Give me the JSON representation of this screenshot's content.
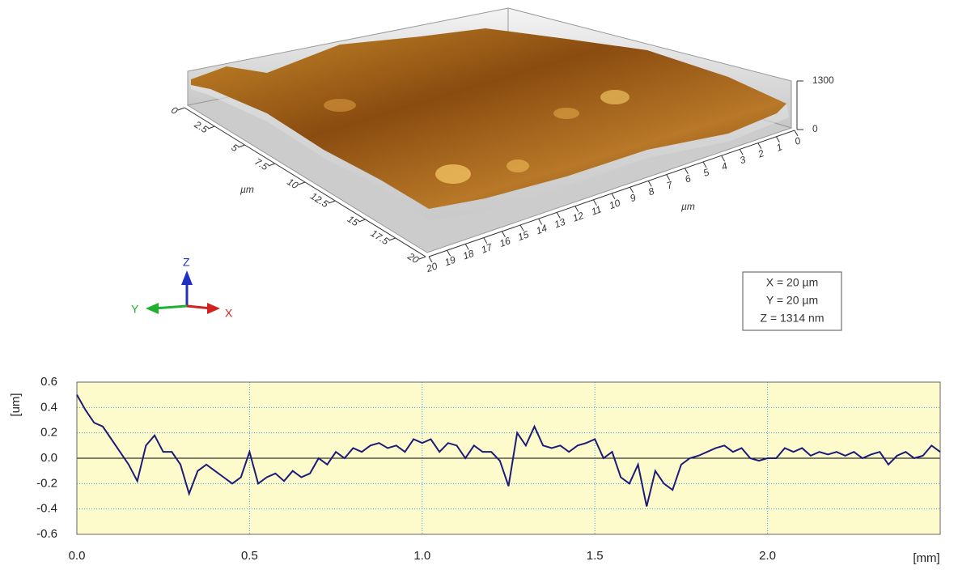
{
  "chart_data": [
    {
      "type": "surface",
      "xlabel": "µm",
      "ylabel": "µm",
      "xlim": [
        0,
        20
      ],
      "xticks": [
        0,
        2.5,
        5,
        7.5,
        10,
        12.5,
        15,
        17.5,
        20
      ],
      "ylim": [
        0,
        20
      ],
      "yticks": [
        20,
        19,
        18,
        17,
        16,
        15,
        14,
        13,
        12,
        11,
        10,
        9,
        8,
        7,
        6,
        5,
        4,
        3,
        2,
        1,
        0
      ],
      "zlim": [
        0,
        1300
      ],
      "zticks": [
        0,
        1300
      ],
      "info": [
        "X = 20 µm",
        "Y = 20 µm",
        "Z = 1314 nm"
      ]
    },
    {
      "type": "line",
      "ylabel": "[um]",
      "xlabel": "[mm]",
      "color": "#1c1c78",
      "grid": true,
      "xlim": [
        0,
        2.5
      ],
      "xticks": [
        {
          "value": 0,
          "label": "0.0"
        },
        0.5,
        {
          "value": 1,
          "label": "1.0"
        },
        1.5,
        {
          "value": 2,
          "label": "2.0"
        }
      ],
      "ylim": [
        -0.6,
        0.6
      ],
      "yticks": [
        -0.6,
        -0.4,
        -0.2,
        {
          "value": 0,
          "label": "0.0"
        },
        0.2,
        0.4,
        0.6
      ],
      "x": [
        0,
        0.025,
        0.05,
        0.075,
        0.1,
        0.125,
        0.15,
        0.175,
        0.2,
        0.225,
        0.25,
        0.275,
        0.3,
        0.325,
        0.35,
        0.375,
        0.4,
        0.425,
        0.45,
        0.475,
        0.5,
        0.525,
        0.55,
        0.575,
        0.6,
        0.625,
        0.65,
        0.675,
        0.7,
        0.725,
        0.75,
        0.775,
        0.8,
        0.825,
        0.85,
        0.875,
        0.9,
        0.925,
        0.95,
        0.975,
        1,
        1.025,
        1.05,
        1.075,
        1.1,
        1.125,
        1.15,
        1.175,
        1.2,
        1.225,
        1.25,
        1.275,
        1.3,
        1.325,
        1.35,
        1.375,
        1.4,
        1.425,
        1.45,
        1.475,
        1.5,
        1.525,
        1.55,
        1.575,
        1.6,
        1.625,
        1.65,
        1.675,
        1.7,
        1.725,
        1.75,
        1.775,
        1.8,
        1.825,
        1.85,
        1.875,
        1.9,
        1.925,
        1.95,
        1.975,
        2,
        2.025,
        2.05,
        2.075,
        2.1,
        2.125,
        2.15,
        2.175,
        2.2,
        2.225,
        2.25,
        2.275,
        2.3,
        2.325,
        2.35,
        2.375,
        2.4,
        2.425,
        2.45,
        2.475,
        2.5
      ],
      "values": [
        0.5,
        0.38,
        0.28,
        0.25,
        0.15,
        0.05,
        -0.05,
        -0.18,
        0.1,
        0.18,
        0.05,
        0.05,
        -0.05,
        -0.28,
        -0.1,
        -0.05,
        -0.1,
        -0.15,
        -0.2,
        -0.15,
        0.05,
        -0.2,
        -0.15,
        -0.12,
        -0.18,
        -0.1,
        -0.15,
        -0.12,
        0,
        -0.05,
        0.05,
        0,
        0.08,
        0.05,
        0.1,
        0.12,
        0.08,
        0.1,
        0.05,
        0.15,
        0.12,
        0.15,
        0.05,
        0.12,
        0.1,
        0,
        0.1,
        0.05,
        0.05,
        -0.02,
        -0.22,
        0.2,
        0.1,
        0.25,
        0.1,
        0.08,
        0.1,
        0.05,
        0.1,
        0.12,
        0.15,
        0,
        0.05,
        -0.15,
        -0.2,
        -0.05,
        -0.38,
        -0.1,
        -0.2,
        -0.25,
        -0.05,
        0,
        0.02,
        0.05,
        0.08,
        0.1,
        0.05,
        0.08,
        0,
        -0.02,
        0,
        0,
        0.08,
        0.05,
        0.08,
        0.02,
        0.05,
        0.03,
        0.05,
        0.02,
        0.05,
        0,
        0.03,
        0.05,
        -0.05,
        0.02,
        0.05,
        0,
        0.02,
        0.1,
        0.05
      ]
    }
  ],
  "triad": {
    "z": "Z",
    "y": "Y",
    "x": "X"
  }
}
